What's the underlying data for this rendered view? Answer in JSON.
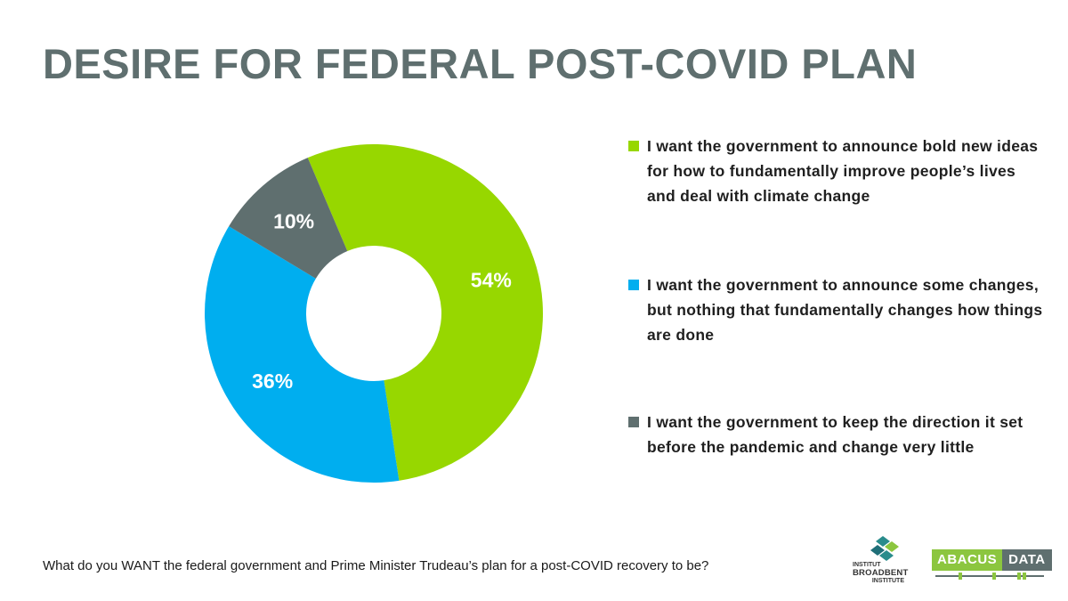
{
  "title": "DESIRE FOR FEDERAL POST-COVID PLAN",
  "question": "What do you WANT the federal government and Prime Minister Trudeau’s plan for a post-COVID recovery to be?",
  "logos": {
    "broadbent": [
      "INSTITUT",
      "BROADBENT",
      "INSTITUTE"
    ],
    "abacus_left": "ABACUS",
    "abacus_right": "DATA"
  },
  "colors": {
    "green": "#97d700",
    "blue": "#00aeef",
    "gray": "#5f6f6f"
  },
  "chart_data": {
    "type": "pie",
    "donut": true,
    "title": "DESIRE FOR FEDERAL POST-COVID PLAN",
    "legend_position": "right",
    "slices": [
      {
        "label": "I want the government to announce bold new ideas for how to fundamentally improve people’s lives and deal with climate change",
        "value": 54,
        "display": "54%",
        "color": "#97d700"
      },
      {
        "label": "I want the government to announce some changes, but nothing that fundamentally changes how things are done",
        "value": 36,
        "display": "36%",
        "color": "#00aeef"
      },
      {
        "label": "I want the government to keep the direction it set before the pandemic and change very little",
        "value": 10,
        "display": "10%",
        "color": "#5f6f6f"
      }
    ]
  }
}
